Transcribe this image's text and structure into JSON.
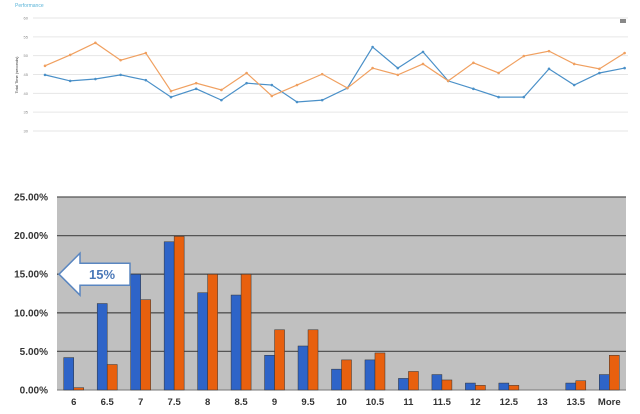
{
  "chart_data": [
    {
      "type": "line",
      "title": "Performance",
      "ylabel": "Total Time (seconds)",
      "ylim": [
        30,
        60
      ],
      "yticks": [
        "60",
        "55",
        "50",
        "45",
        "40",
        "35",
        "30"
      ],
      "grid": true,
      "x": [
        1,
        2,
        3,
        4,
        5,
        6,
        7,
        8,
        9,
        10,
        11,
        12,
        13,
        14,
        15,
        16,
        17,
        18,
        19,
        20,
        21,
        22,
        23,
        24
      ],
      "series": [
        {
          "color": "#4a90c8",
          "values": [
            44.9,
            43.3,
            43.8,
            44.9,
            43.5,
            39.0,
            41.2,
            38.2,
            42.7,
            42.2,
            37.7,
            38.2,
            41.4,
            52.3,
            46.7,
            51.0,
            43.3,
            41.2,
            39.0,
            39.0,
            46.5,
            42.2,
            45.4,
            46.7
          ]
        },
        {
          "color": "#f0a060",
          "values": [
            47.3,
            50.2,
            53.4,
            48.8,
            50.7,
            40.6,
            42.7,
            40.9,
            45.4,
            39.3,
            42.2,
            45.1,
            41.4,
            46.7,
            44.9,
            47.8,
            43.3,
            48.1,
            45.4,
            49.9,
            51.2,
            47.8,
            46.5,
            50.7
          ]
        }
      ],
      "menu_icon": "menu-icon"
    },
    {
      "type": "bar",
      "categories": [
        "6",
        "6.5",
        "7",
        "7.5",
        "8",
        "8.5",
        "9",
        "9.5",
        "10",
        "10.5",
        "11",
        "11.5",
        "12",
        "12.5",
        "13",
        "13.5",
        "More"
      ],
      "ylim": [
        0,
        25
      ],
      "yticks": [
        "0.00%",
        "5.00%",
        "10.00%",
        "15.00%",
        "20.00%",
        "25.00%"
      ],
      "grid": true,
      "background": "#c0c0c0",
      "series": [
        {
          "color": "#2e64c8",
          "values": [
            4.2,
            11.2,
            15.0,
            19.2,
            12.6,
            12.3,
            4.5,
            5.7,
            2.7,
            3.9,
            1.5,
            2.0,
            0.9,
            0.9,
            0,
            0.9,
            2.0
          ]
        },
        {
          "color": "#e8600e",
          "values": [
            0.3,
            3.3,
            11.7,
            19.9,
            15.0,
            15.0,
            7.8,
            7.8,
            3.9,
            4.8,
            2.4,
            1.3,
            0.6,
            0.6,
            0,
            1.2,
            4.5
          ]
        }
      ],
      "annotation": {
        "text": "15%",
        "value": 15,
        "icon": "arrow-left-icon"
      }
    }
  ]
}
